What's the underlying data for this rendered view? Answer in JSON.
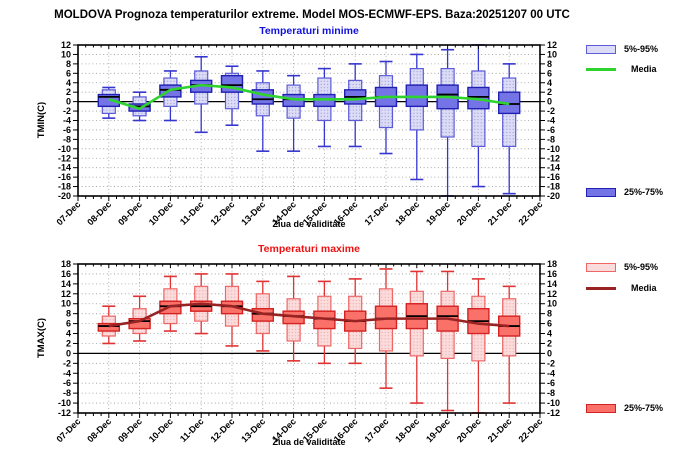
{
  "title": "MOLDOVA  Prognoza temperaturilor extreme.  Model MOS-ECMWF-EPS. Baza:20251207 00 UTC",
  "x_axis_label": "Ziua de validitate",
  "x_ticks": [
    "07-Dec",
    "08-Dec",
    "09-Dec",
    "10-Dec",
    "11-Dec",
    "12-Dec",
    "13-Dec",
    "14-Dec",
    "15-Dec",
    "16-Dec",
    "17-Dec",
    "18-Dec",
    "19-Dec",
    "20-Dec",
    "21-Dec",
    "22-Dec"
  ],
  "legend": {
    "p5_95": "5%-95%",
    "media": "Media",
    "p25_75": "25%-75%"
  },
  "chart_data": [
    {
      "type": "boxplot",
      "title": "Temperaturi minime",
      "ylabel": "TMIN(C)",
      "xlabel": "Ziua de validitate",
      "ylim": [
        -20,
        12
      ],
      "yticks": [
        12,
        10,
        8,
        6,
        4,
        2,
        0,
        -2,
        -4,
        -6,
        -8,
        -10,
        -12,
        -14,
        -16,
        -18,
        -20
      ],
      "grid": "dotted",
      "legend_entries": [
        "5%-95%",
        "Media",
        "25%-75%"
      ],
      "colors": {
        "subtitle": "#1111dd",
        "whisker": "#3535cf",
        "box5_95_fill": "#dcdcf7",
        "box5_95_dots": "#8a8ad0",
        "box5_95_border": "#5c5cd8",
        "box25_75_fill": "#7474e6",
        "box25_75_border": "#2020b2",
        "median": "#000000",
        "mean": "#2fd32f"
      },
      "boxes": [
        {
          "date": "08-Dec",
          "min": -3.5,
          "p5": -2.5,
          "p25": -1.0,
          "median": 1.0,
          "p75": 1.5,
          "p95": 2.5,
          "max": 3.0,
          "mean": 0.5
        },
        {
          "date": "09-Dec",
          "min": -4.0,
          "p5": -3.0,
          "p25": -2.0,
          "median": -1.0,
          "p75": -0.5,
          "p95": 1.0,
          "max": 2.0,
          "mean": -1.5
        },
        {
          "date": "10-Dec",
          "min": -4.0,
          "p5": -1.0,
          "p25": 1.0,
          "median": 2.5,
          "p75": 3.5,
          "p95": 5.0,
          "max": 6.5,
          "mean": 2.5
        },
        {
          "date": "11-Dec",
          "min": -6.5,
          "p5": -0.5,
          "p25": 2.0,
          "median": 3.5,
          "p75": 4.5,
          "p95": 6.5,
          "max": 9.5,
          "mean": 3.5
        },
        {
          "date": "12-Dec",
          "min": -5.0,
          "p5": -1.5,
          "p25": 2.0,
          "median": 3.5,
          "p75": 5.5,
          "p95": 6.0,
          "max": 7.5,
          "mean": 3.0
        },
        {
          "date": "13-Dec",
          "min": -10.5,
          "p5": -3.0,
          "p25": -0.5,
          "median": 0.5,
          "p75": 2.5,
          "p95": 4.0,
          "max": 6.5,
          "mean": 1.5
        },
        {
          "date": "14-Dec",
          "min": -10.5,
          "p5": -3.5,
          "p25": -1.0,
          "median": 0.5,
          "p75": 1.5,
          "p95": 3.5,
          "max": 5.5,
          "mean": 0.5
        },
        {
          "date": "15-Dec",
          "min": -9.5,
          "p5": -4.0,
          "p25": -1.0,
          "median": 0.5,
          "p75": 1.5,
          "p95": 5.0,
          "max": 7.0,
          "mean": 0.5
        },
        {
          "date": "16-Dec",
          "min": -9.5,
          "p5": -4.0,
          "p25": -0.5,
          "median": 1.0,
          "p75": 2.5,
          "p95": 4.5,
          "max": 8.0,
          "mean": 0.5
        },
        {
          "date": "17-Dec",
          "min": -11.0,
          "p5": -5.5,
          "p25": -1.0,
          "median": 1.0,
          "p75": 3.0,
          "p95": 5.5,
          "max": 8.5,
          "mean": 1.0
        },
        {
          "date": "18-Dec",
          "min": -16.5,
          "p5": -6.0,
          "p25": -1.0,
          "median": 1.0,
          "p75": 3.5,
          "p95": 7.0,
          "max": 10.0,
          "mean": 1.0
        },
        {
          "date": "19-Dec",
          "min": -20.0,
          "p5": -7.5,
          "p25": -1.5,
          "median": 1.5,
          "p75": 3.5,
          "p95": 7.0,
          "max": 11.0,
          "mean": 1.0
        },
        {
          "date": "20-Dec",
          "min": -18.0,
          "p5": -9.5,
          "p25": -1.5,
          "median": 1.0,
          "p75": 3.0,
          "p95": 6.5,
          "max": 12.0,
          "mean": 0.5
        },
        {
          "date": "21-Dec",
          "min": -19.5,
          "p5": -9.5,
          "p25": -2.5,
          "median": -0.5,
          "p75": 2.0,
          "p95": 5.0,
          "max": 8.0,
          "mean": -0.5
        }
      ]
    },
    {
      "type": "boxplot",
      "title": "Temperaturi maxime",
      "ylabel": "TMAX(C)",
      "xlabel": "Ziua de validitate",
      "ylim": [
        -12,
        18
      ],
      "yticks": [
        18,
        16,
        14,
        12,
        10,
        8,
        6,
        4,
        2,
        0,
        -2,
        -4,
        -6,
        -8,
        -10,
        -12
      ],
      "grid": "dotted",
      "legend_entries": [
        "5%-95%",
        "Media",
        "25%-75%"
      ],
      "colors": {
        "subtitle": "#ee1111",
        "whisker": "#e03232",
        "box5_95_fill": "#fbdcdc",
        "box5_95_dots": "#ee9a9a",
        "box5_95_border": "#ee6666",
        "box25_75_fill": "#f97168",
        "box25_75_border": "#d42222",
        "median": "#000000",
        "mean": "#992222"
      },
      "boxes": [
        {
          "date": "08-Dec",
          "min": 2.0,
          "p5": 3.5,
          "p25": 4.5,
          "median": 5.5,
          "p75": 6.0,
          "p95": 7.5,
          "max": 9.5,
          "mean": 5.5
        },
        {
          "date": "09-Dec",
          "min": 2.5,
          "p5": 4.0,
          "p25": 5.0,
          "median": 6.5,
          "p75": 7.0,
          "p95": 9.0,
          "max": 11.5,
          "mean": 6.5
        },
        {
          "date": "10-Dec",
          "min": 4.5,
          "p5": 6.0,
          "p25": 8.0,
          "median": 9.5,
          "p75": 10.5,
          "p95": 13.0,
          "max": 15.5,
          "mean": 9.5
        },
        {
          "date": "11-Dec",
          "min": 4.0,
          "p5": 6.5,
          "p25": 8.5,
          "median": 9.5,
          "p75": 10.5,
          "p95": 13.5,
          "max": 16.0,
          "mean": 10.0
        },
        {
          "date": "12-Dec",
          "min": 1.5,
          "p5": 5.5,
          "p25": 8.0,
          "median": 9.5,
          "p75": 10.5,
          "p95": 13.5,
          "max": 16.0,
          "mean": 9.5
        },
        {
          "date": "13-Dec",
          "min": 0.5,
          "p5": 4.0,
          "p25": 6.5,
          "median": 8.0,
          "p75": 9.0,
          "p95": 12.0,
          "max": 14.5,
          "mean": 8.0
        },
        {
          "date": "14-Dec",
          "min": -1.5,
          "p5": 2.5,
          "p25": 6.0,
          "median": 7.5,
          "p75": 8.5,
          "p95": 11.0,
          "max": 15.5,
          "mean": 7.5
        },
        {
          "date": "15-Dec",
          "min": -2.0,
          "p5": 1.5,
          "p25": 5.0,
          "median": 7.0,
          "p75": 8.5,
          "p95": 11.5,
          "max": 14.5,
          "mean": 7.0
        },
        {
          "date": "16-Dec",
          "min": -2.0,
          "p5": 1.0,
          "p25": 4.5,
          "median": 6.5,
          "p75": 8.5,
          "p95": 11.5,
          "max": 15.0,
          "mean": 6.5
        },
        {
          "date": "17-Dec",
          "min": -7.0,
          "p5": 0.5,
          "p25": 5.0,
          "median": 7.0,
          "p75": 9.5,
          "p95": 13.0,
          "max": 17.0,
          "mean": 7.0
        },
        {
          "date": "18-Dec",
          "min": -10.0,
          "p5": -0.5,
          "p25": 5.0,
          "median": 7.5,
          "p75": 10.0,
          "p95": 12.5,
          "max": 16.5,
          "mean": 7.0
        },
        {
          "date": "19-Dec",
          "min": -11.5,
          "p5": -1.0,
          "p25": 4.5,
          "median": 7.5,
          "p75": 9.5,
          "p95": 12.5,
          "max": 16.5,
          "mean": 7.0
        },
        {
          "date": "20-Dec",
          "min": -12.0,
          "p5": -1.5,
          "p25": 4.0,
          "median": 6.5,
          "p75": 9.0,
          "p95": 11.5,
          "max": 15.0,
          "mean": 6.0
        },
        {
          "date": "21-Dec",
          "min": -10.0,
          "p5": -0.5,
          "p25": 3.5,
          "median": 5.5,
          "p75": 7.5,
          "p95": 11.0,
          "max": 13.5,
          "mean": 5.5
        }
      ]
    }
  ]
}
